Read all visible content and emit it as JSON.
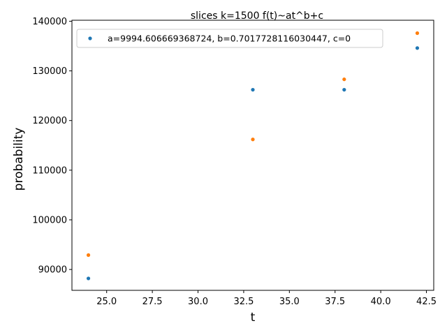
{
  "chart_data": {
    "type": "scatter",
    "title": "slices k=1500 f(t)~at^b+c",
    "xlabel": "t",
    "ylabel": "probability",
    "xlim": [
      23.1,
      42.9
    ],
    "ylim": [
      85800,
      140200
    ],
    "xticks": [
      "25.0",
      "27.5",
      "30.0",
      "32.5",
      "35.0",
      "37.5",
      "40.0",
      "42.5"
    ],
    "xtick_values": [
      25.0,
      27.5,
      30.0,
      32.5,
      35.0,
      37.5,
      40.0,
      42.5
    ],
    "yticks": [
      "90000",
      "100000",
      "110000",
      "120000",
      "130000",
      "140000"
    ],
    "ytick_values": [
      90000,
      100000,
      110000,
      120000,
      130000,
      140000
    ],
    "grid": false,
    "legend_position": "top-left",
    "series": [
      {
        "name": "a=9994.606669368724, b=0.7017728116030447, c=0",
        "color": "#1f77b4",
        "in_legend": true,
        "x": [
          24,
          33,
          38,
          42
        ],
        "y": [
          88200,
          126200,
          126200,
          134600
        ]
      },
      {
        "color": "#ff7f0e",
        "in_legend": false,
        "x": [
          24,
          33,
          38,
          42
        ],
        "y": [
          92900,
          116200,
          128300,
          137600
        ]
      }
    ]
  }
}
